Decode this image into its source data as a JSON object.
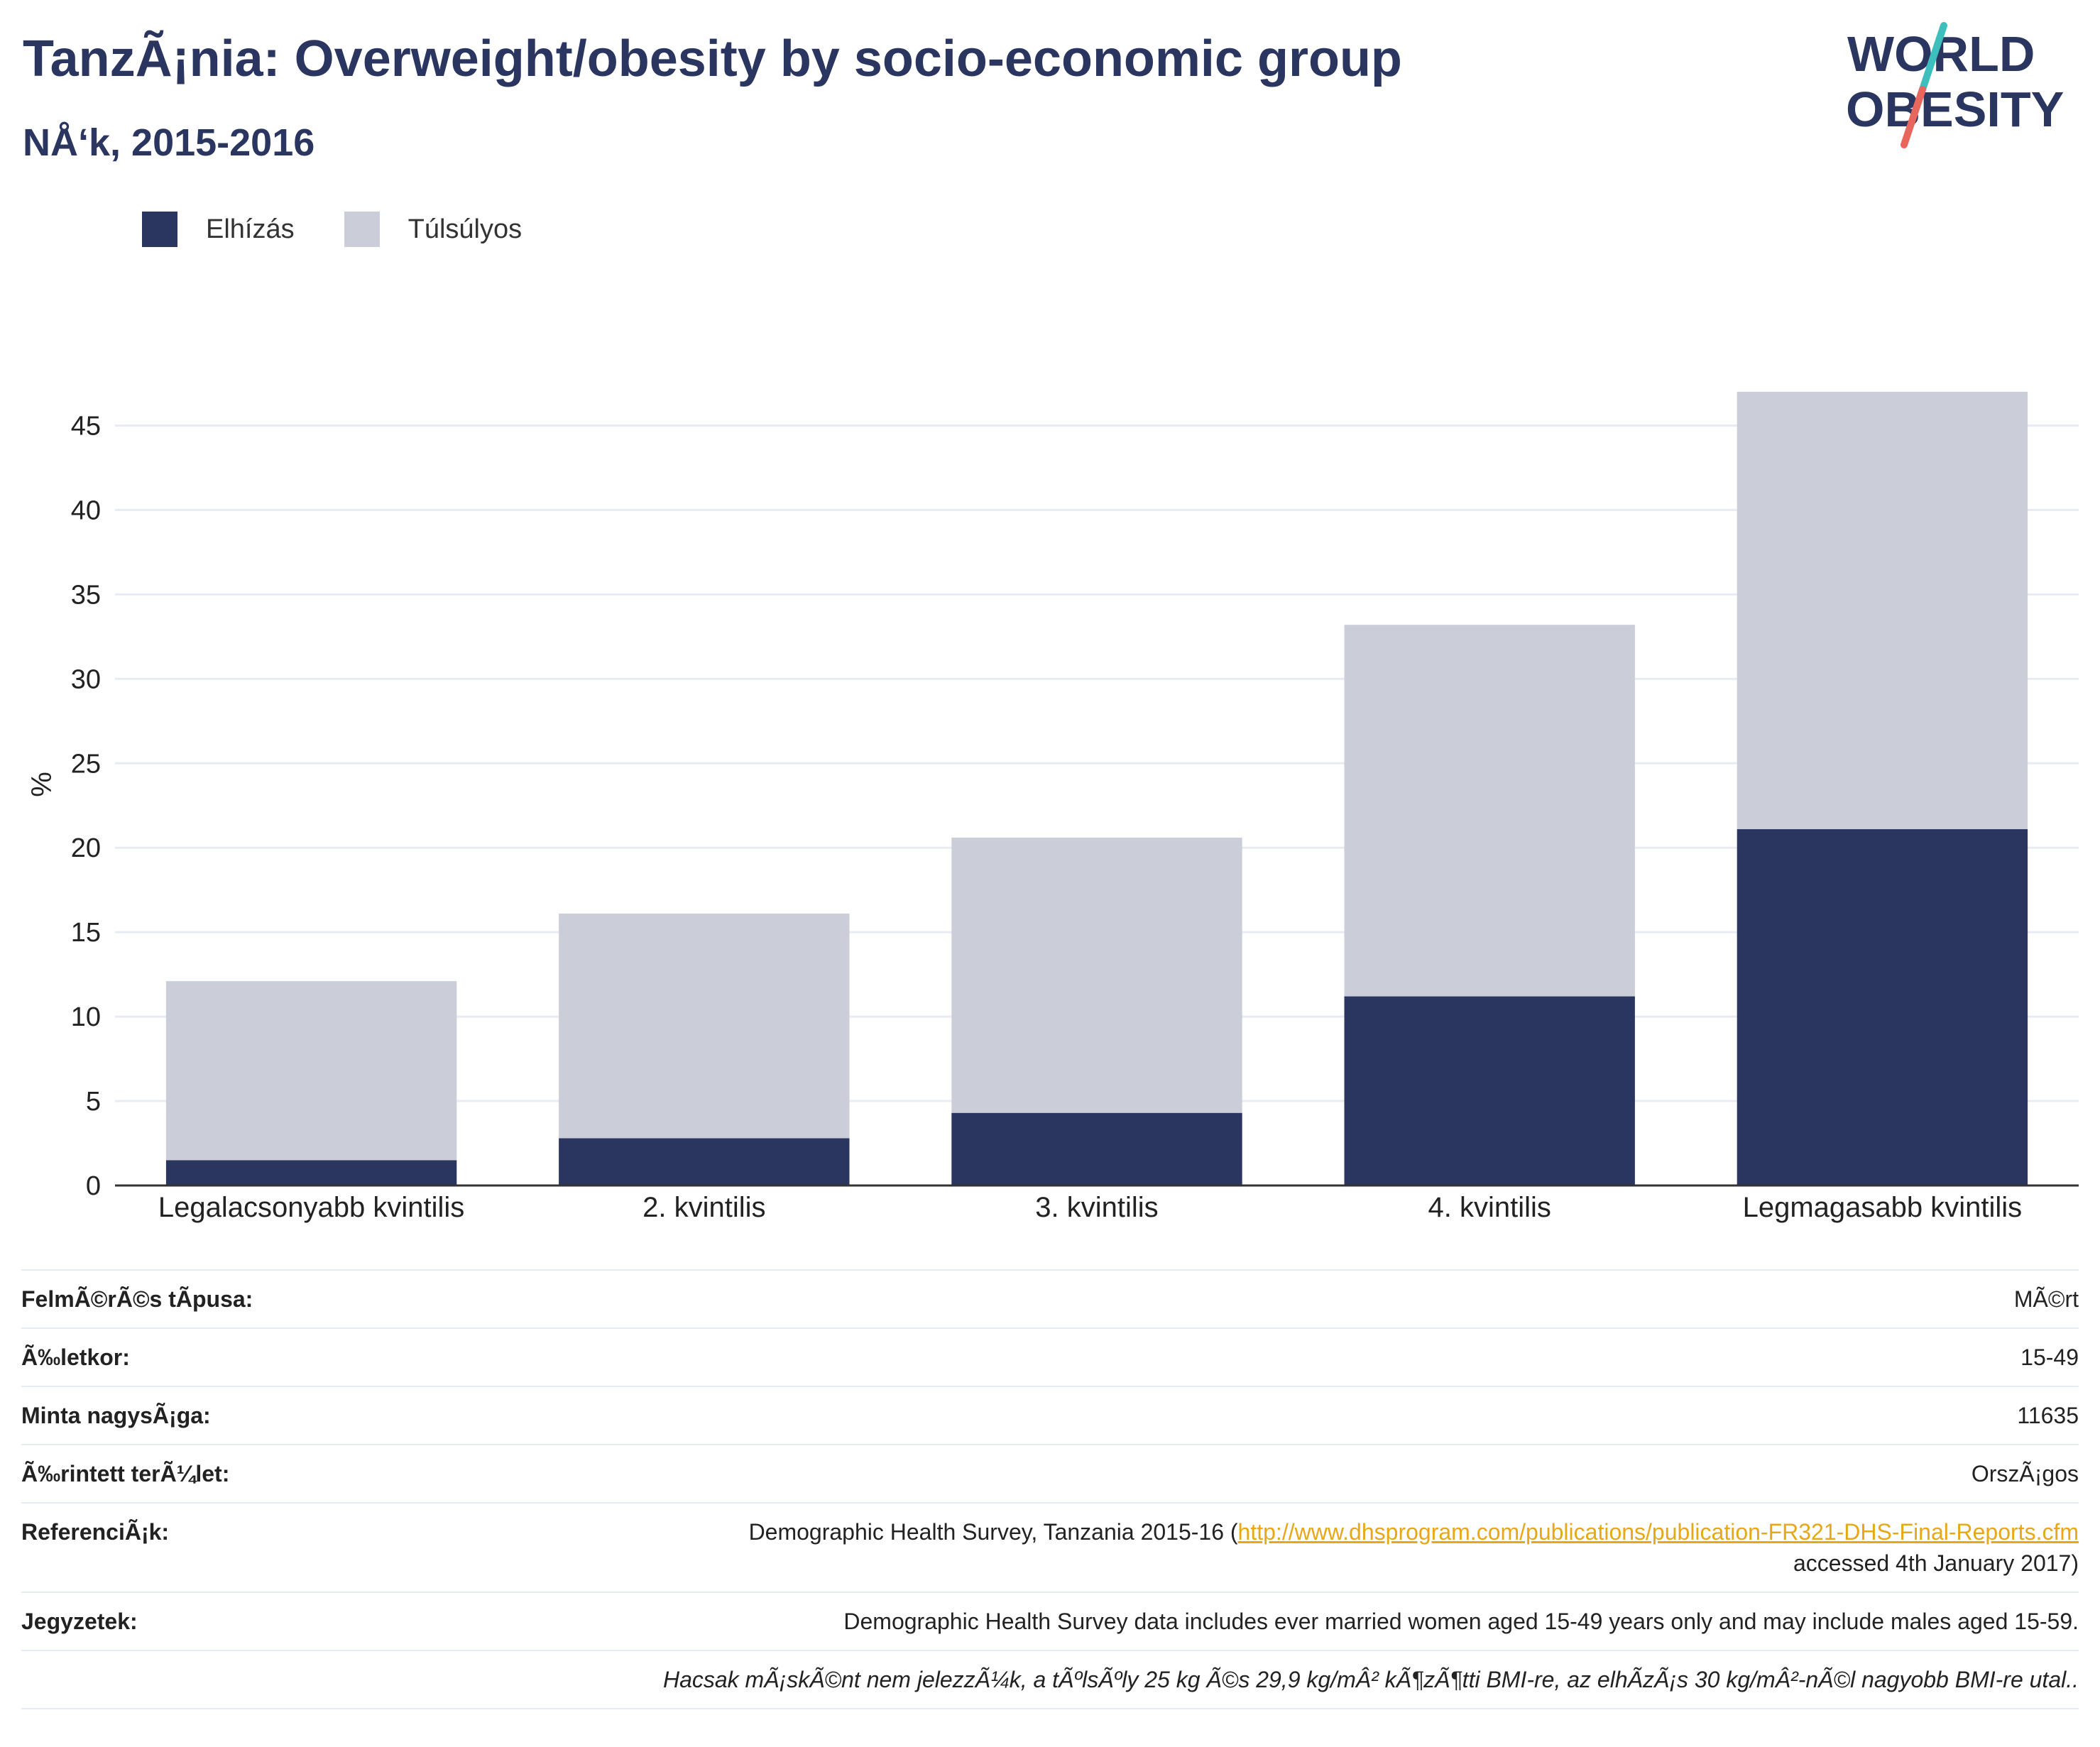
{
  "header": {
    "title": "TanzÃ¡nia: Overweight/obesity by socio-economic group",
    "subtitle": "NÅ‘k, 2015-2016"
  },
  "logo": {
    "line1": "WORLD",
    "line2": "OBESITY",
    "colors": {
      "text": "#2a3560",
      "slash_top": "#3dbfbd",
      "slash_bottom": "#e8665c"
    }
  },
  "legend": {
    "items": [
      {
        "label": "Elhízás",
        "color": "#2a3560"
      },
      {
        "label": "Túlsúlyos",
        "color": "#cbcdd9"
      }
    ]
  },
  "chart_data": {
    "type": "bar",
    "stacked": true,
    "categories": [
      "Legalacsonyabb kvintilis",
      "2. kvintilis",
      "3. kvintilis",
      "4. kvintilis",
      "Legmagasabb kvintilis"
    ],
    "series": [
      {
        "name": "Elhízás",
        "color": "#2a3560",
        "values": [
          1.5,
          2.8,
          4.3,
          11.2,
          21.1
        ]
      },
      {
        "name": "Túlsúlyos",
        "color": "#cbcdd9",
        "values": [
          10.6,
          13.3,
          16.3,
          22.0,
          25.9
        ]
      }
    ],
    "ylabel": "%",
    "ylim": [
      0,
      47.5
    ],
    "yticks": [
      0,
      5,
      10,
      15,
      20,
      25,
      30,
      35,
      40,
      45
    ],
    "grid": true,
    "legend_position": "top-left"
  },
  "info": {
    "survey_type": {
      "label": "FelmÃ©rÃ©s tÃpusa:",
      "value": "MÃ©rt"
    },
    "age": {
      "label": "Ã‰letkor:",
      "value": "15-49"
    },
    "sample_size": {
      "label": "Minta nagysÃ¡ga:",
      "value": "11635"
    },
    "area": {
      "label": "Ã‰rintett terÃ¼let:",
      "value": "OrszÃ¡gos"
    },
    "references": {
      "label": "ReferenciÃ¡k:",
      "text_before": "Demographic Health Survey, Tanzania 2015-16 (",
      "link": "http://www.dhsprogram.com/publications/publication-FR321-DHS-Final-Reports.cfm",
      "text_after": "accessed 4th January 2017)"
    },
    "notes": {
      "label": "Jegyzetek:",
      "value": "Demographic Health Survey data includes ever married women aged 15-49 years only and may include males aged 15-59.",
      "value2": "Hacsak mÃ¡skÃ©nt nem jelezzÃ¼k, a tÃºlsÃºly 25 kg Ã©s 29,9 kg/mÂ² kÃ¶zÃ¶tti BMI-re, az elhÃ­zÃ¡s 30 kg/mÂ²-nÃ©l nagyobb BMI-re utal.."
    }
  }
}
